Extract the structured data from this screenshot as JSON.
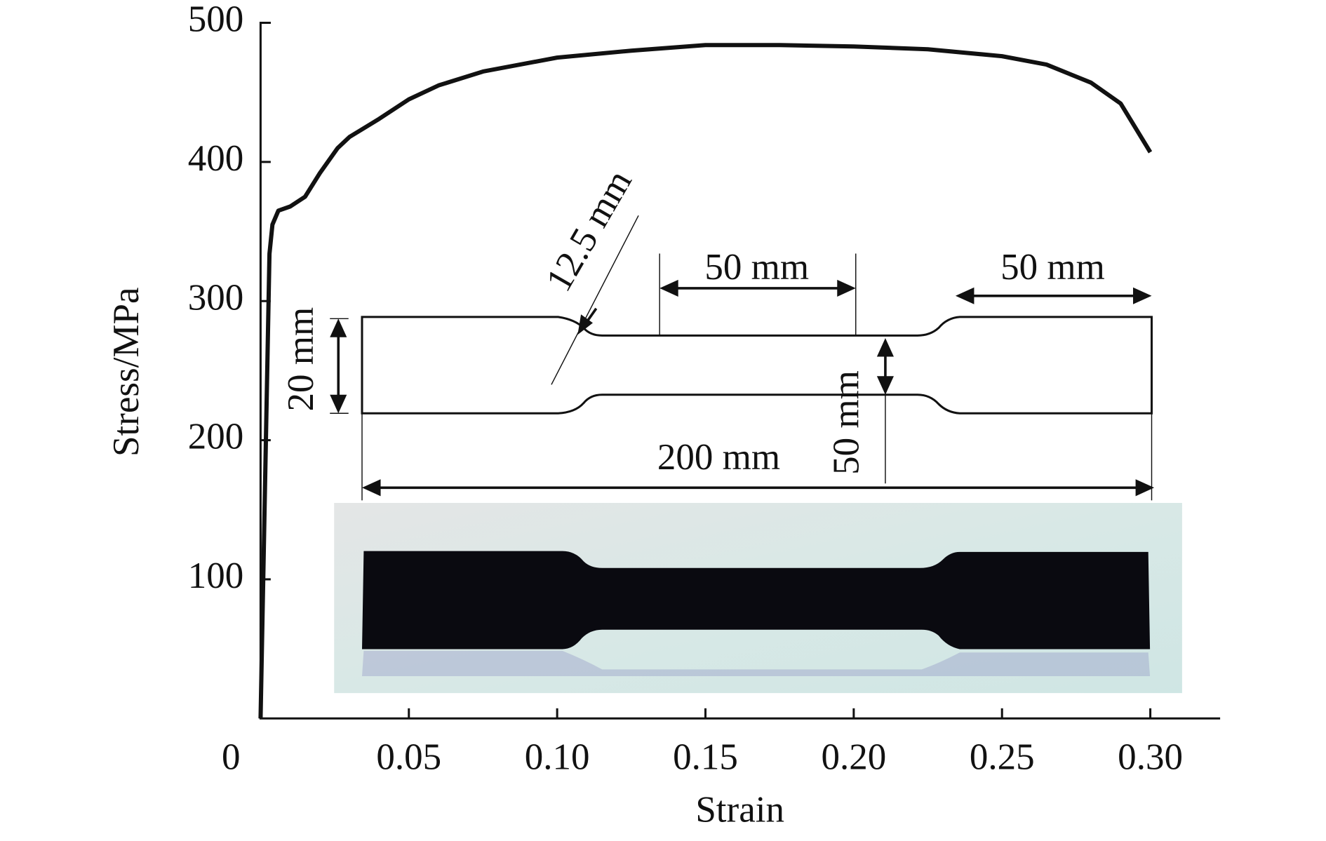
{
  "chart_data": {
    "type": "line",
    "x_label": "Strain",
    "y_label": "Stress/MPa",
    "x": [
      0,
      0.003,
      0.004,
      0.006,
      0.01,
      0.015,
      0.02,
      0.026,
      0.03,
      0.04,
      0.05,
      0.06,
      0.075,
      0.1,
      0.125,
      0.15,
      0.175,
      0.2,
      0.225,
      0.25,
      0.265,
      0.28,
      0.29,
      0.3
    ],
    "values": [
      0,
      334,
      355,
      365,
      368,
      375,
      392,
      410,
      418,
      431,
      445,
      455,
      465,
      475,
      480,
      484,
      484,
      483,
      481,
      476,
      470,
      457,
      442,
      407
    ],
    "color": "#111111",
    "xlim": [
      0,
      0.323
    ],
    "xticks": [
      0,
      0.05,
      {
        "value": 0.1,
        "label": "0.10"
      },
      0.15,
      {
        "value": 0.2,
        "label": "0.20"
      },
      0.25,
      {
        "value": 0.3,
        "label": "0.30"
      }
    ],
    "ylim": [
      0,
      500
    ],
    "yticks": [
      100,
      200,
      300,
      400,
      500
    ],
    "annotations": [
      "12.5 mm",
      "50 mm",
      "50 mm",
      "20 mm",
      "200 mm",
      "50 mm"
    ]
  }
}
